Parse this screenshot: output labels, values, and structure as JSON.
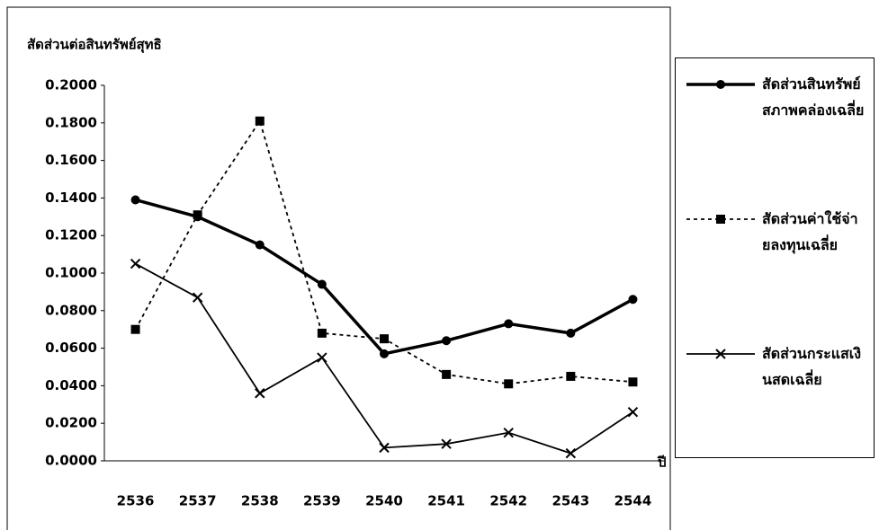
{
  "chart_data": {
    "type": "line",
    "y_label": "สัดส่วนต่อสินทรัพย์สุทธิ",
    "x_label": "ปี",
    "categories": [
      "2536",
      "2537",
      "2538",
      "2539",
      "2540",
      "2541",
      "2542",
      "2543",
      "2544"
    ],
    "series": [
      {
        "name": "สัดส่วนสินทรัพย์สภาพคล่องเฉลี่ย",
        "color": "#000000",
        "linestyle": "solid",
        "marker": "circle",
        "values": [
          0.139,
          0.13,
          0.115,
          0.094,
          0.057,
          0.064,
          0.073,
          0.068,
          0.086
        ]
      },
      {
        "name": "สัดส่วนค่าใช้จ่ายลงทุนเฉลี่ย",
        "color": "#000000",
        "linestyle": "dashed",
        "marker": "square",
        "values": [
          0.07,
          0.131,
          0.181,
          0.068,
          0.065,
          0.046,
          0.041,
          0.045,
          0.042
        ]
      },
      {
        "name": "สัดส่วนกระแสเงินสดเฉลี่ย",
        "color": "#000000",
        "linestyle": "thin",
        "marker": "x",
        "values": [
          0.105,
          0.087,
          0.036,
          0.055,
          0.007,
          0.009,
          0.015,
          0.004,
          0.026
        ]
      }
    ],
    "ylim": [
      0,
      0.2
    ],
    "yticks": [
      {
        "value": 0,
        "label": "0.0000"
      },
      {
        "value": 0.02,
        "label": "0.0200"
      },
      {
        "value": 0.04,
        "label": "0.0400"
      },
      {
        "value": 0.06,
        "label": "0.0600"
      },
      {
        "value": 0.08,
        "label": "0.0800"
      },
      {
        "value": 0.1,
        "label": "0.1000"
      },
      {
        "value": 0.12,
        "label": "0.1200"
      },
      {
        "value": 0.14,
        "label": "0.1400"
      },
      {
        "value": 0.16,
        "label": "0.1600"
      },
      {
        "value": 0.18,
        "label": "0.1800"
      },
      {
        "value": 0.2,
        "label": "0.2000"
      }
    ],
    "grid": false,
    "legend": "right"
  }
}
